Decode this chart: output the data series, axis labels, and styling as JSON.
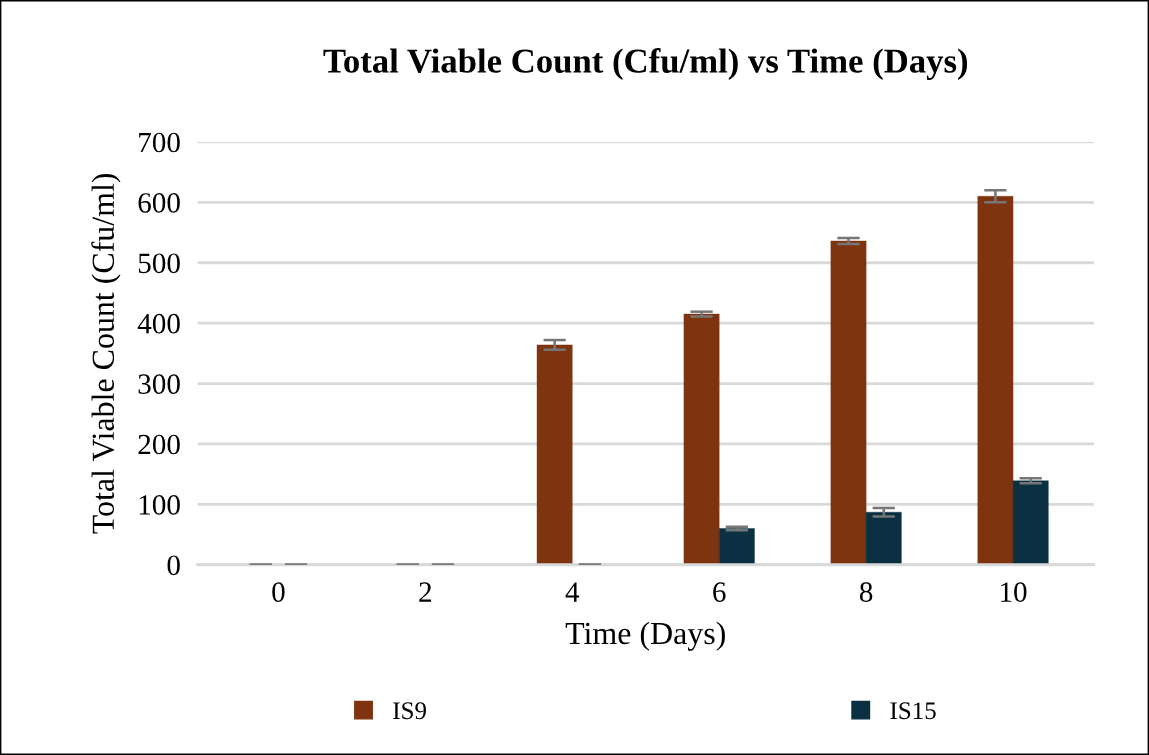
{
  "chart_data": {
    "type": "bar",
    "title": "Total Viable Count (Cfu/ml) vs Time (Days)",
    "xlabel": "Time (Days)",
    "ylabel": "Total Viable Count (Cfu/ml)",
    "categories": [
      "0",
      "2",
      "4",
      "6",
      "8",
      "10"
    ],
    "series": [
      {
        "name": "IS9",
        "color": "#7f3410",
        "values": [
          0,
          0,
          364,
          415,
          536,
          610
        ],
        "errors": [
          0,
          0,
          8,
          4,
          5,
          10
        ]
      },
      {
        "name": "IS15",
        "color": "#0b3042",
        "values": [
          0,
          0,
          0,
          60,
          87,
          139
        ],
        "errors": [
          0,
          0,
          0,
          3,
          7,
          4
        ]
      }
    ],
    "ylim": [
      0,
      700
    ],
    "yticks": [
      0,
      100,
      200,
      300,
      400,
      500,
      600,
      700
    ],
    "grid": "y",
    "legend": "bottom"
  }
}
